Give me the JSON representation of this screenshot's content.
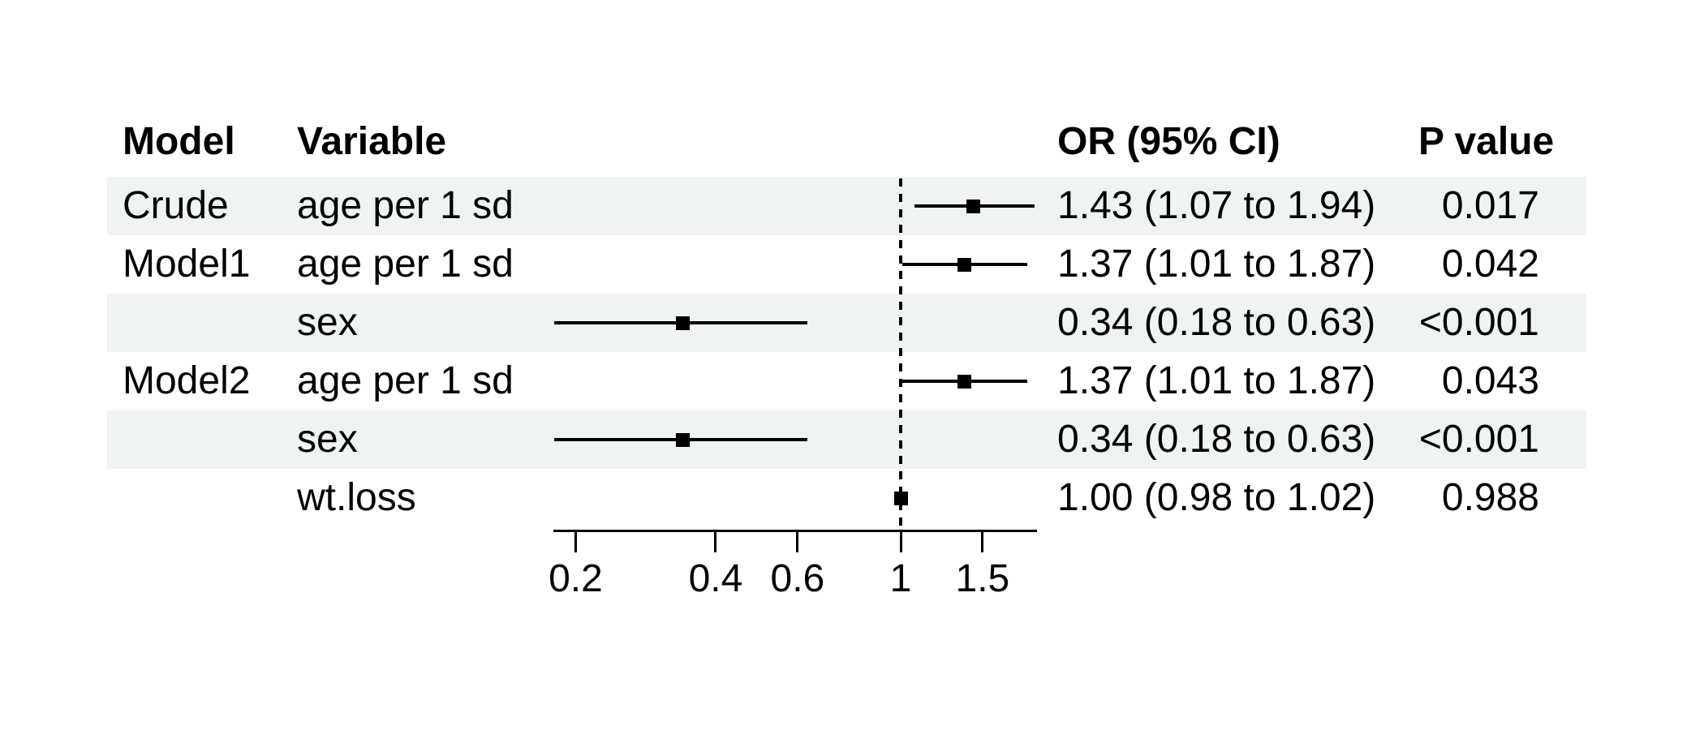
{
  "header": {
    "model": "Model",
    "variable": "Variable",
    "or_ci": "OR (95% CI)",
    "p_value": "P value"
  },
  "chart_data": {
    "type": "forest-plot",
    "x_scale": "log10",
    "x_axis": {
      "ticks": [
        0.2,
        0.4,
        0.6,
        1,
        1.5
      ],
      "tick_labels": [
        "0.2",
        "0.4",
        "0.6",
        "1",
        "1.5"
      ],
      "range": [
        0.18,
        1.94
      ],
      "reference_line": 1
    },
    "legend": "none",
    "grid": "off",
    "colors": {
      "stripe": "#eff3f2",
      "ink": "#000000",
      "background": "#ffffff"
    },
    "rows": [
      {
        "model": "Crude",
        "variable": "age per 1 sd",
        "or": 1.43,
        "ci_low": 1.07,
        "ci_high": 1.94,
        "or_ci_label": "1.43 (1.07 to 1.94)",
        "p_label": "0.017",
        "striped": true
      },
      {
        "model": "Model1",
        "variable": "age per 1 sd",
        "or": 1.37,
        "ci_low": 1.01,
        "ci_high": 1.87,
        "or_ci_label": "1.37 (1.01 to 1.87)",
        "p_label": "0.042",
        "striped": false
      },
      {
        "model": "",
        "variable": "sex",
        "or": 0.34,
        "ci_low": 0.18,
        "ci_high": 0.63,
        "or_ci_label": "0.34 (0.18 to 0.63)",
        "p_label": "<0.001",
        "striped": true
      },
      {
        "model": "Model2",
        "variable": "age per 1 sd",
        "or": 1.37,
        "ci_low": 1.01,
        "ci_high": 1.87,
        "or_ci_label": "1.37 (1.01 to 1.87)",
        "p_label": "0.043",
        "striped": false
      },
      {
        "model": "",
        "variable": "sex",
        "or": 0.34,
        "ci_low": 0.18,
        "ci_high": 0.63,
        "or_ci_label": "0.34 (0.18 to 0.63)",
        "p_label": "<0.001",
        "striped": true
      },
      {
        "model": "",
        "variable": "wt.loss",
        "or": 1.0,
        "ci_low": 0.98,
        "ci_high": 1.02,
        "or_ci_label": "1.00 (0.98 to 1.02)",
        "p_label": "0.988",
        "striped": false
      }
    ]
  }
}
